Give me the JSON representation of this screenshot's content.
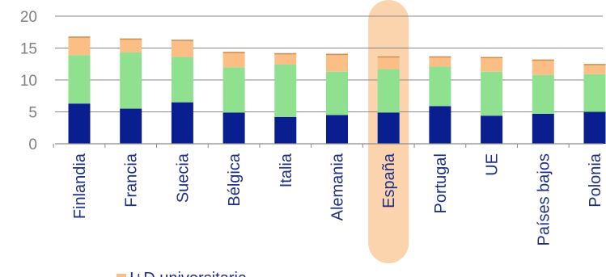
{
  "chart_data": {
    "type": "bar",
    "stacked": true,
    "categories": [
      "Finlandia",
      "Francia",
      "Suecia",
      "Bélgica",
      "Italia",
      "Alemania",
      "España",
      "Portugal",
      "UE",
      "Países bajos",
      "Polonia"
    ],
    "series": [
      {
        "values": [
          6.3,
          5.5,
          6.5,
          4.9,
          4.2,
          4.5,
          4.9,
          5.9,
          4.4,
          4.7,
          5.0
        ]
      },
      {
        "values": [
          7.6,
          8.8,
          7.1,
          7.1,
          8.2,
          6.8,
          6.8,
          6.2,
          6.9,
          6.1,
          5.9
        ]
      },
      {
        "values": [
          2.9,
          2.2,
          2.7,
          2.4,
          1.8,
          2.8,
          2.0,
          1.6,
          2.3,
          2.4,
          1.6
        ]
      }
    ],
    "colors": [
      "#0a1f8f",
      "#8fe08f",
      "#fbbf86"
    ],
    "highlight": {
      "category": "España",
      "color": "#fbd4ae"
    },
    "ylim": [
      0,
      20
    ],
    "yticks": [
      "20",
      "15",
      "10",
      "5",
      "0"
    ],
    "grid": true,
    "legend": {
      "entries": [
        "I+D universitaria"
      ],
      "position": "bottom"
    },
    "title": "",
    "xlabel": "",
    "ylabel": ""
  }
}
